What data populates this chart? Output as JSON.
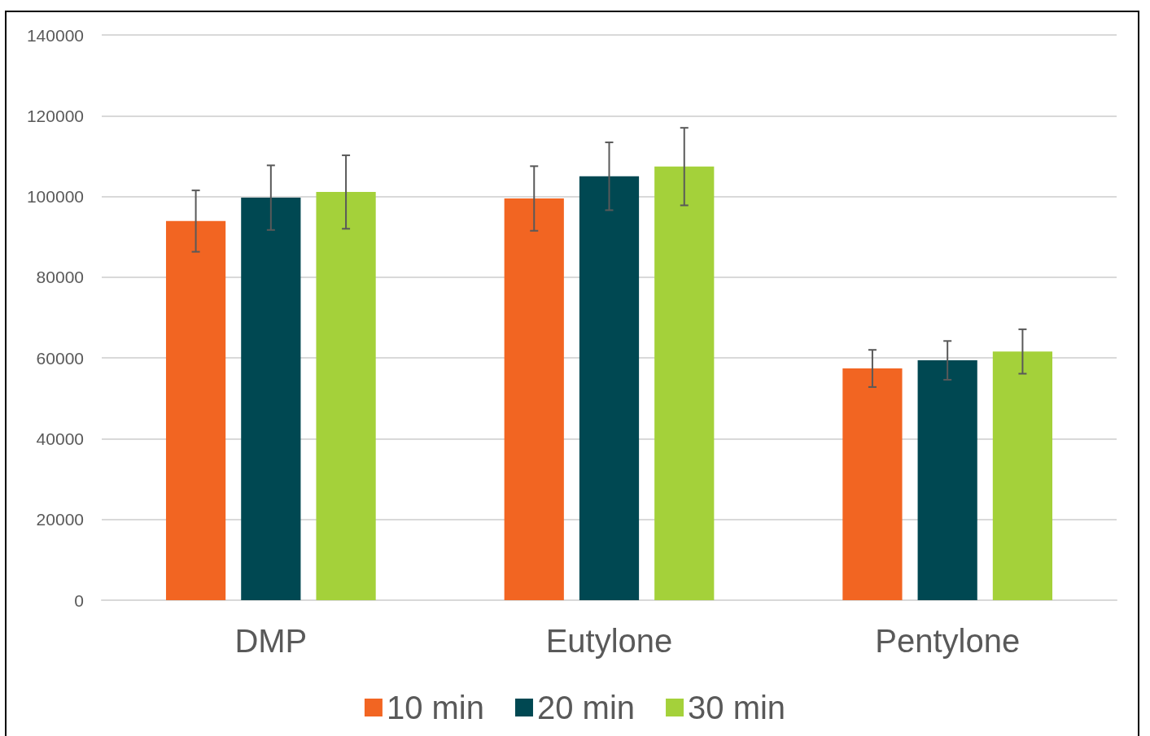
{
  "chart_data": {
    "type": "bar",
    "categories": [
      "DMP",
      "Eutylone",
      "Pentylone"
    ],
    "series": [
      {
        "name": "10 min",
        "color": "#f26522",
        "values": [
          93900,
          99500,
          57400
        ],
        "errors": [
          7600,
          8000,
          4600
        ]
      },
      {
        "name": "20 min",
        "color": "#004852",
        "values": [
          99700,
          105000,
          59400
        ],
        "errors": [
          8000,
          8400,
          4800
        ]
      },
      {
        "name": "30 min",
        "color": "#a4d13a",
        "values": [
          101100,
          107400,
          61600
        ],
        "errors": [
          9100,
          9600,
          5500
        ]
      }
    ],
    "ylim": [
      0,
      140000
    ],
    "yticks": [
      0,
      20000,
      40000,
      60000,
      80000,
      100000,
      120000,
      140000
    ],
    "grid": "y",
    "legend": "bottom"
  }
}
